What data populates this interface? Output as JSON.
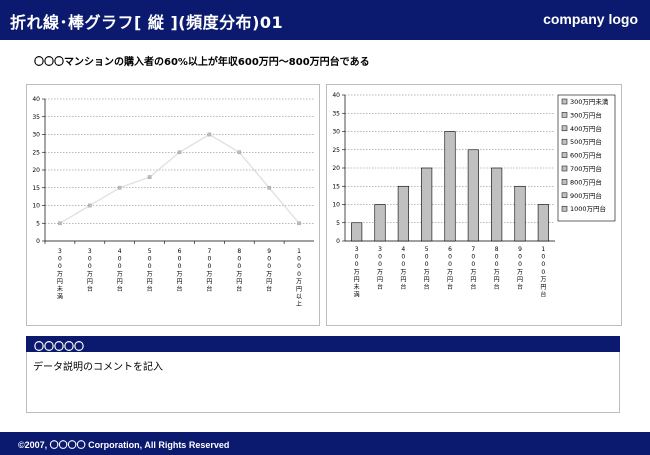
{
  "header": {
    "title": "折れ線･棒グラフ[ 縦 ](頻度分布)01",
    "logo": "company logo"
  },
  "subtitle": "〇〇〇マンションの購入者の60%以上が年収600万円～800万円台である",
  "comment": {
    "heading": "〇〇〇〇〇",
    "text": "データ説明のコメントを記入"
  },
  "footer": "©2007, 〇〇〇〇 Corporation, All Rights Reserved",
  "colors": {
    "brand_navy": "#0b1a6e",
    "bar_fill": "#c0c0c0",
    "line": "#e2e2e2"
  },
  "chart_data": [
    {
      "type": "line",
      "categories": [
        "300万円未満",
        "300万円台",
        "400万円台",
        "500万円台",
        "600万円台",
        "700万円台",
        "800万円台",
        "900万円台",
        "1000万円以上"
      ],
      "values": [
        5,
        10,
        15,
        18,
        25,
        30,
        25,
        15,
        5
      ],
      "ylim": [
        0,
        40
      ],
      "yticks": [
        0,
        5,
        10,
        15,
        20,
        25,
        30,
        35,
        40
      ],
      "grid": true,
      "legend": "none"
    },
    {
      "type": "bar",
      "categories": [
        "300万円未満",
        "300万円台",
        "400万円台",
        "500万円台",
        "600万円台",
        "700万円台",
        "800万円台",
        "900万円台",
        "1000万円台"
      ],
      "values": [
        5,
        10,
        15,
        20,
        30,
        25,
        20,
        15,
        10
      ],
      "ylim": [
        0,
        40
      ],
      "yticks": [
        0,
        5,
        10,
        15,
        20,
        25,
        30,
        35,
        40
      ],
      "grid": true,
      "legend": "right",
      "legend_entries": [
        "300万円未満",
        "300万円台",
        "400万円台",
        "500万円台",
        "600万円台",
        "700万円台",
        "800万円台",
        "900万円台",
        "1000万円台"
      ]
    }
  ]
}
